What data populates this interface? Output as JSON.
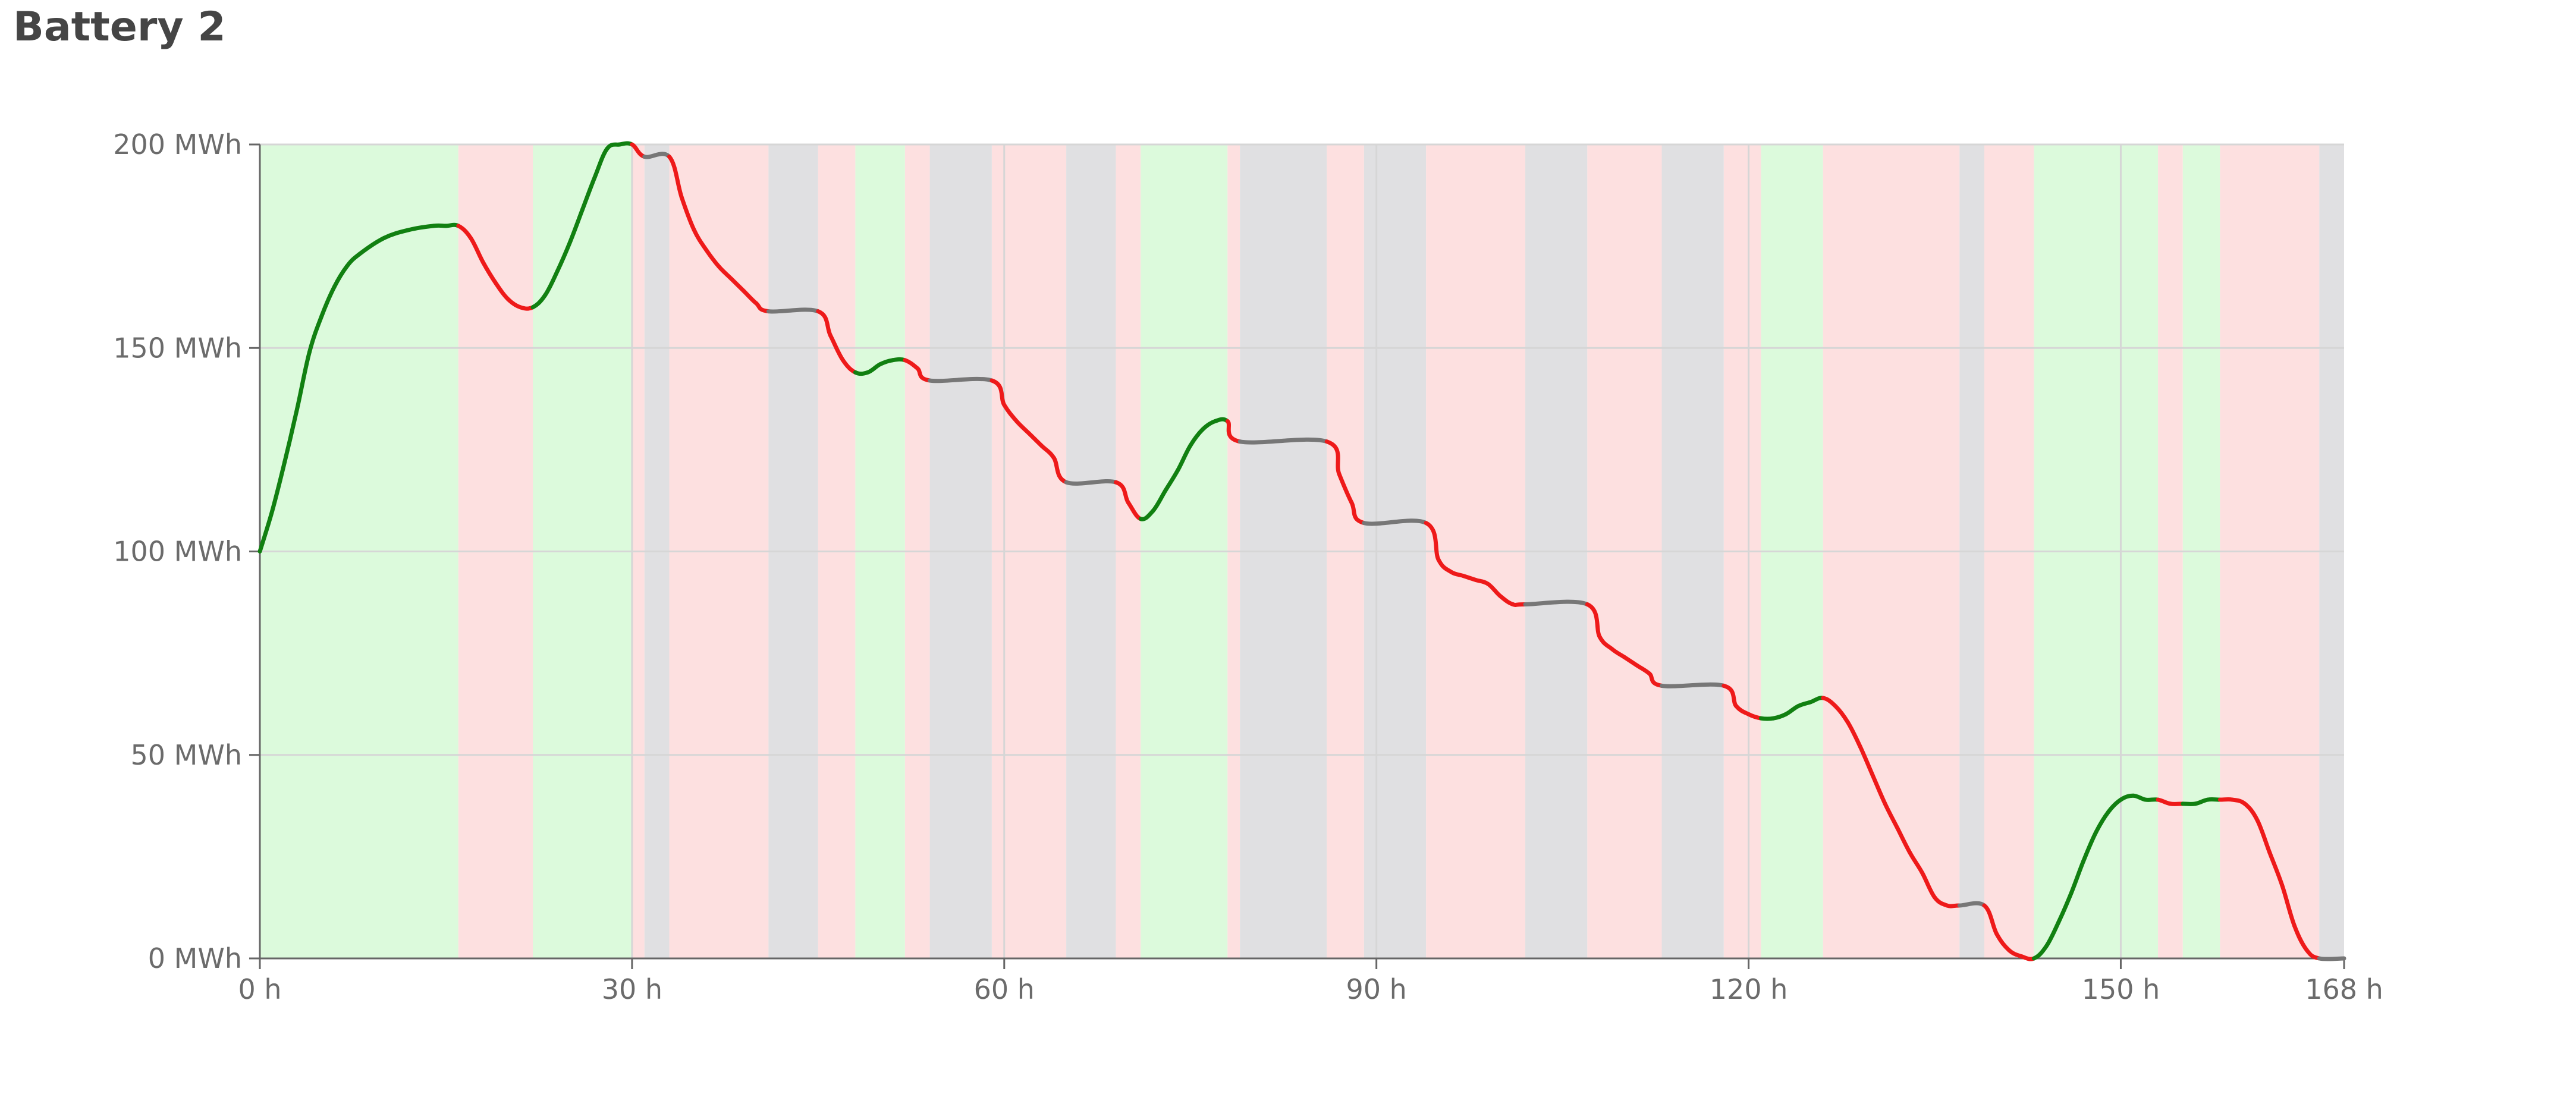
{
  "title": "Battery 2",
  "chart_data": {
    "type": "line",
    "title": "Battery 2",
    "xlabel": "",
    "ylabel": "",
    "x_unit": "h",
    "y_unit": "MWh",
    "xlim": [
      0,
      168
    ],
    "ylim": [
      0,
      200
    ],
    "x_ticks": [
      0,
      30,
      60,
      90,
      120,
      150,
      168
    ],
    "x_tick_labels": [
      "0 h",
      "30 h",
      "60 h",
      "90 h",
      "120 h",
      "150 h",
      "168 h"
    ],
    "y_ticks": [
      0,
      50,
      100,
      150,
      200
    ],
    "y_tick_labels": [
      "0 MWh",
      "50 MWh",
      "100 MWh",
      "150 MWh",
      "200 MWh"
    ],
    "grid": true,
    "state_colors": {
      "charge": "#dcfadc",
      "discharge": "#fde0e0",
      "idle": "#e0e0e2"
    },
    "line_colors": {
      "charge": "#118011",
      "discharge": "#ee1a1a",
      "idle": "#777777"
    },
    "segments": [
      {
        "start": 0,
        "end": 16,
        "state": "charge"
      },
      {
        "start": 16,
        "end": 22,
        "state": "discharge"
      },
      {
        "start": 22,
        "end": 30,
        "state": "charge"
      },
      {
        "start": 30,
        "end": 31,
        "state": "discharge"
      },
      {
        "start": 31,
        "end": 33,
        "state": "idle"
      },
      {
        "start": 33,
        "end": 41,
        "state": "discharge"
      },
      {
        "start": 41,
        "end": 45,
        "state": "idle"
      },
      {
        "start": 45,
        "end": 48,
        "state": "discharge"
      },
      {
        "start": 48,
        "end": 52,
        "state": "charge"
      },
      {
        "start": 52,
        "end": 54,
        "state": "discharge"
      },
      {
        "start": 54,
        "end": 59,
        "state": "idle"
      },
      {
        "start": 59,
        "end": 65,
        "state": "discharge"
      },
      {
        "start": 65,
        "end": 69,
        "state": "idle"
      },
      {
        "start": 69,
        "end": 71,
        "state": "discharge"
      },
      {
        "start": 71,
        "end": 78,
        "state": "charge"
      },
      {
        "start": 78,
        "end": 79,
        "state": "discharge"
      },
      {
        "start": 79,
        "end": 86,
        "state": "idle"
      },
      {
        "start": 86,
        "end": 89,
        "state": "discharge"
      },
      {
        "start": 89,
        "end": 94,
        "state": "idle"
      },
      {
        "start": 94,
        "end": 102,
        "state": "discharge"
      },
      {
        "start": 102,
        "end": 107,
        "state": "idle"
      },
      {
        "start": 107,
        "end": 113,
        "state": "discharge"
      },
      {
        "start": 113,
        "end": 118,
        "state": "idle"
      },
      {
        "start": 118,
        "end": 121,
        "state": "discharge"
      },
      {
        "start": 121,
        "end": 126,
        "state": "charge"
      },
      {
        "start": 126,
        "end": 137,
        "state": "discharge"
      },
      {
        "start": 137,
        "end": 139,
        "state": "idle"
      },
      {
        "start": 139,
        "end": 143,
        "state": "discharge"
      },
      {
        "start": 143,
        "end": 153,
        "state": "charge"
      },
      {
        "start": 153,
        "end": 155,
        "state": "discharge"
      },
      {
        "start": 155,
        "end": 158,
        "state": "charge"
      },
      {
        "start": 158,
        "end": 166,
        "state": "discharge"
      },
      {
        "start": 166,
        "end": 168,
        "state": "idle"
      }
    ],
    "series": [
      {
        "x": [
          0,
          1,
          2,
          3,
          4,
          5,
          6,
          7,
          8,
          10,
          12,
          14,
          15,
          16,
          17,
          18,
          19,
          20,
          21,
          22,
          23,
          24,
          25,
          26,
          27,
          28,
          29,
          30,
          31,
          33,
          34,
          35,
          36,
          37,
          38,
          39,
          40,
          41,
          45,
          46,
          47,
          48,
          49,
          50,
          51,
          52,
          53,
          54,
          59,
          60,
          61,
          62,
          63,
          64,
          65,
          69,
          70,
          71,
          72,
          73,
          74,
          75,
          76,
          77,
          78,
          79,
          86,
          87,
          88,
          89,
          94,
          95,
          96,
          97,
          98,
          99,
          100,
          101,
          102,
          107,
          108,
          109,
          110,
          111,
          112,
          113,
          118,
          119,
          120,
          121,
          122,
          123,
          124,
          125,
          126,
          127,
          128,
          129,
          130,
          131,
          132,
          133,
          134,
          135,
          136,
          137,
          139,
          140,
          141,
          142,
          143,
          144,
          145,
          146,
          147,
          148,
          149,
          150,
          151,
          152,
          153,
          154,
          155,
          156,
          157,
          158,
          159,
          160,
          161,
          162,
          163,
          164,
          165,
          166,
          168
        ],
        "y": [
          100,
          110,
          122,
          135,
          149,
          158,
          165,
          170,
          173,
          177,
          179,
          180,
          180,
          180,
          177,
          171,
          166,
          162,
          160,
          160,
          163,
          169,
          176,
          184,
          192,
          199,
          200,
          200,
          197,
          197,
          187,
          179,
          174,
          170,
          167,
          164,
          161,
          159,
          159,
          153,
          147,
          144,
          144,
          146,
          147,
          147,
          145,
          142,
          142,
          136,
          132,
          129,
          126,
          123,
          117,
          117,
          112,
          108,
          110,
          115,
          120,
          126,
          130,
          132,
          132,
          127,
          127,
          119,
          112,
          107,
          107,
          98,
          95,
          94,
          93,
          92,
          89,
          87,
          87,
          87,
          79,
          76,
          74,
          72,
          70,
          67,
          67,
          62,
          60,
          59,
          59,
          60,
          62,
          63,
          64,
          62,
          58,
          52,
          45,
          38,
          32,
          26,
          21,
          15,
          13,
          13,
          13,
          6,
          2,
          0.5,
          0,
          3,
          9,
          16,
          24,
          31,
          36,
          39,
          40,
          39,
          39,
          38,
          38,
          38,
          39,
          39,
          39,
          38,
          34,
          26,
          18,
          8,
          2,
          0,
          0
        ]
      }
    ]
  }
}
